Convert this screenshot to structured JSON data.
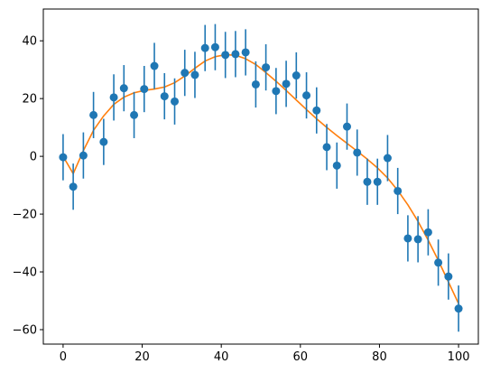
{
  "chart_data": {
    "type": "scatter",
    "xlim": [
      -5,
      105
    ],
    "ylim": [
      -65,
      51
    ],
    "x_ticks": [
      0,
      20,
      40,
      60,
      80,
      100
    ],
    "y_ticks": [
      -60,
      -40,
      -20,
      0,
      20,
      40
    ],
    "x_tick_labels": [
      "0",
      "20",
      "40",
      "60",
      "80",
      "100"
    ],
    "y_tick_labels": [
      "−60",
      "−40",
      "−20",
      "0",
      "20",
      "40"
    ],
    "grid": false,
    "series": [
      {
        "type": "errorbar",
        "color": "#1f77b4",
        "x": [
          0.0,
          2.56,
          5.13,
          7.69,
          10.26,
          12.82,
          15.38,
          17.95,
          20.51,
          23.08,
          25.64,
          28.21,
          30.77,
          33.33,
          35.9,
          38.46,
          41.03,
          43.59,
          46.15,
          48.72,
          51.28,
          53.85,
          56.41,
          58.97,
          61.54,
          64.1,
          66.67,
          69.23,
          71.79,
          74.36,
          76.92,
          79.49,
          82.05,
          84.62,
          87.18,
          89.74,
          92.31,
          94.87,
          97.44,
          100.0
        ],
        "y": [
          -0.3,
          -10.5,
          0.3,
          14.3,
          5.0,
          20.4,
          23.6,
          14.3,
          23.3,
          31.3,
          20.8,
          19.0,
          28.9,
          28.2,
          37.5,
          37.8,
          35.1,
          35.4,
          36.0,
          24.9,
          30.8,
          22.6,
          25.1,
          28.0,
          21.1,
          15.9,
          3.2,
          -3.2,
          10.3,
          1.3,
          -8.8,
          -8.8,
          -0.6,
          -12.0,
          -28.4,
          -28.7,
          -26.3,
          -36.8,
          -41.6,
          -52.7
        ],
        "yerr": 8
      },
      {
        "type": "line",
        "color": "#ff7f0e",
        "x": [
          0,
          2.56,
          5.13,
          7.69,
          10.26,
          12.82,
          15.38,
          17.95,
          20.51,
          23.08,
          25.64,
          28.21,
          30.77,
          33.33,
          35.9,
          38.46,
          41.03,
          43.59,
          46.15,
          48.72,
          51.28,
          53.85,
          56.41,
          58.97,
          61.54,
          64.1,
          66.67,
          69.23,
          71.79,
          74.36,
          76.92,
          79.49,
          82.05,
          84.62,
          87.18,
          89.74,
          92.31,
          94.87,
          97.44,
          100
        ],
        "y": [
          0.0,
          -6.0,
          2.0,
          9.0,
          14.0,
          18.0,
          20.5,
          22.0,
          22.8,
          23.3,
          24.0,
          25.5,
          27.8,
          30.5,
          33.0,
          34.5,
          35.2,
          35.0,
          33.8,
          31.8,
          29.0,
          26.0,
          22.8,
          19.5,
          16.2,
          13.0,
          10.0,
          7.2,
          4.5,
          1.8,
          -1.0,
          -4.0,
          -7.5,
          -11.8,
          -16.8,
          -22.5,
          -29.0,
          -36.0,
          -43.5,
          -51.0
        ]
      }
    ]
  }
}
